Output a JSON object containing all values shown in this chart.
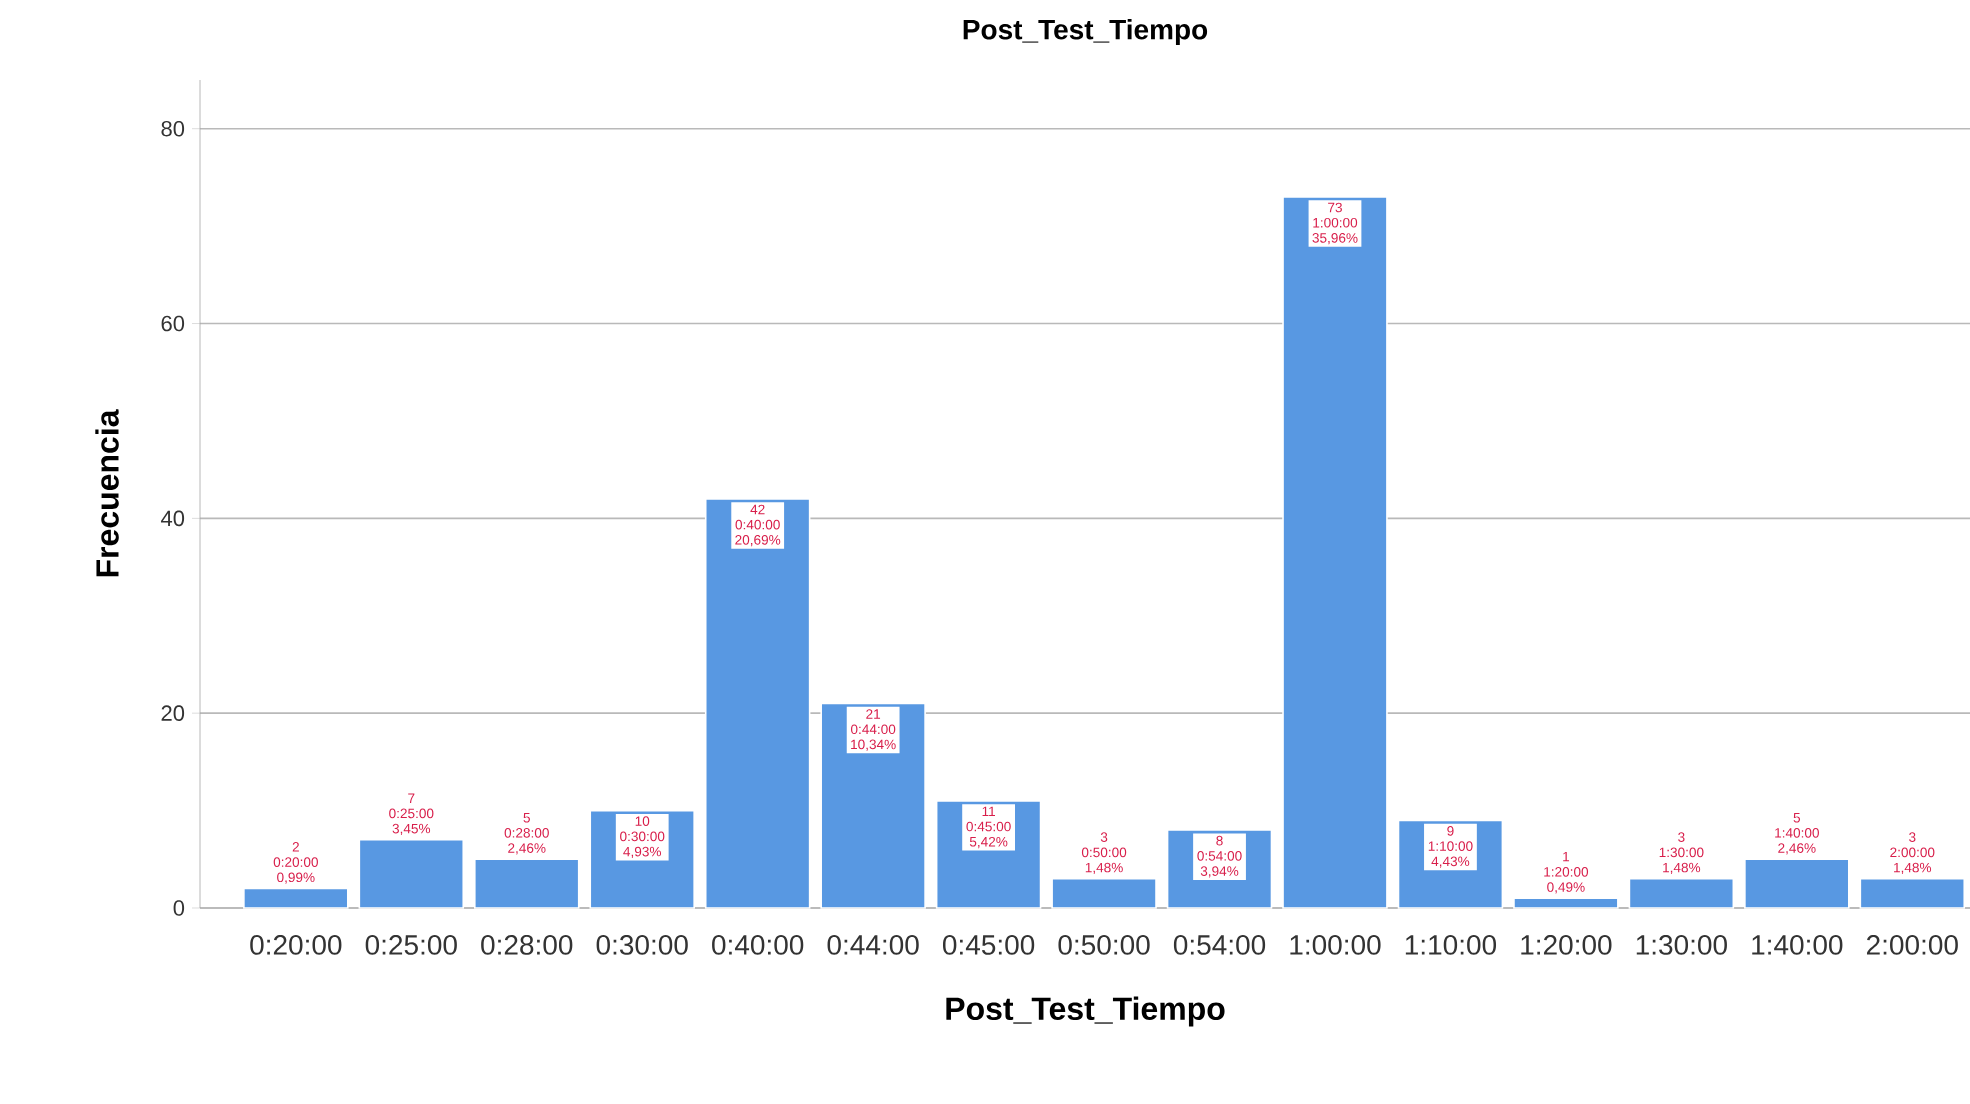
{
  "chart_data": {
    "type": "bar",
    "title": "Post_Test_Tiempo",
    "xlabel": "Post_Test_Tiempo",
    "ylabel": "Frecuencia",
    "categories": [
      "0:20:00",
      "0:25:00",
      "0:28:00",
      "0:30:00",
      "0:40:00",
      "0:44:00",
      "0:45:00",
      "0:50:00",
      "0:54:00",
      "1:00:00",
      "1:10:00",
      "1:20:00",
      "1:30:00",
      "1:40:00",
      "2:00:00"
    ],
    "values": [
      2,
      7,
      5,
      10,
      42,
      21,
      11,
      3,
      8,
      73,
      9,
      1,
      3,
      5,
      3
    ],
    "value_labels": [
      "2 0:20:00 0,99%",
      "7 0:25:00 3,45%",
      "5 0:28:00 2,46%",
      "10 0:30:00 4,93%",
      "42 0:40:00 20,69%",
      "21 0:44:00 10,34%",
      "11 0:45:00 5,42%",
      "3 0:50:00 1,48%",
      "8 0:54:00 3,94%",
      "73 1:00:00 35,96%",
      "9 1:10:00 4,43%",
      "1 1:20:00 0,49%",
      "3 1:30:00 1,48%",
      "5 1:40:00 2,46%",
      "3 2:00:00 1,48%"
    ],
    "color": "#5898e2",
    "ylim": [
      0,
      85
    ],
    "yticks": [
      0,
      20,
      40,
      60,
      80
    ],
    "grid": "y"
  }
}
